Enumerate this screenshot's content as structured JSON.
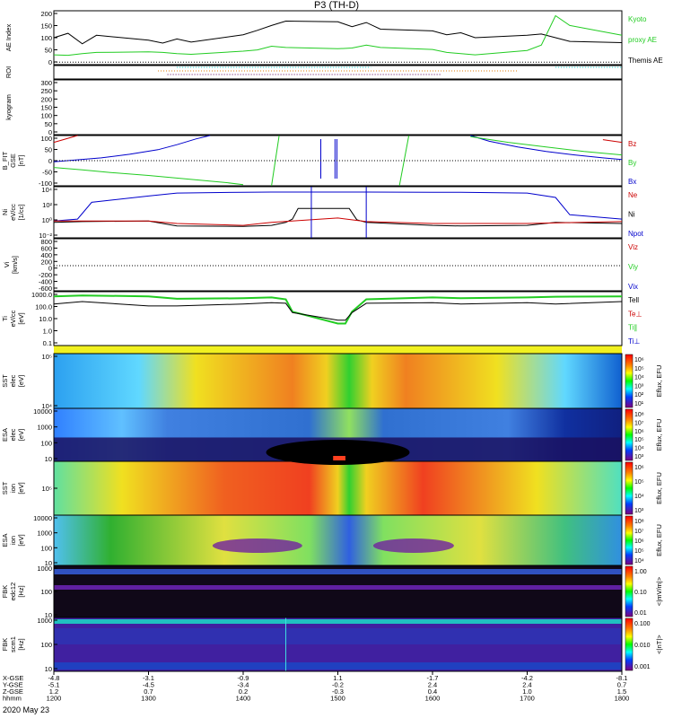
{
  "title": "P3 (TH-D)",
  "date_label": "2020 May 23",
  "colors": {
    "red": "#cc0000",
    "green": "#22cc22",
    "blue": "#0000cc",
    "black": "#000000",
    "cyan": "#00c8c8",
    "orange": "#dd7700"
  },
  "chart_data": {
    "type": "line",
    "x_axis": {
      "range": [
        1200,
        1800
      ],
      "hhmm_ticks": [
        "1200",
        "1300",
        "1400",
        "1500",
        "1600",
        "1700",
        "1800"
      ],
      "rows": [
        {
          "label": "X-GSE",
          "values": [
            "-4.8",
            "-3.1",
            "-0.9",
            "1.1",
            "-1.7",
            "-4.2",
            "-8.1"
          ]
        },
        {
          "label": "Y-GSE",
          "values": [
            "-5.1",
            "-4.5",
            "-3.4",
            "-0.2",
            "2.4",
            "2.4",
            "0.7"
          ]
        },
        {
          "label": "Z-GSE",
          "values": [
            "1.2",
            "0.7",
            "0.2",
            "-0.3",
            "0.4",
            "1.0",
            "1.5"
          ]
        },
        {
          "label": "hhmm",
          "values": [
            "1200",
            "1300",
            "1400",
            "1500",
            "1600",
            "1700",
            "1800"
          ]
        }
      ]
    },
    "panels": [
      {
        "id": "ae",
        "ylabel": [
          "AE Index"
        ],
        "yticks": [
          "200",
          "150",
          "100",
          "50",
          "0"
        ],
        "legend": [
          {
            "text": "Kyoto",
            "color": "#22cc22"
          },
          {
            "text": "proxy AE",
            "color": "#22cc22"
          },
          {
            "text": "Themis AE",
            "color": "#000000"
          }
        ]
      },
      {
        "id": "roi",
        "ylabel": [
          "ROI"
        ],
        "yticks": []
      },
      {
        "id": "kyogram",
        "ylabel": [
          "kyogram"
        ],
        "yticks": [
          "300",
          "250",
          "200",
          "150",
          "100",
          "50",
          "0"
        ]
      },
      {
        "id": "bfit",
        "ylabel": [
          "B_FIT",
          "GSE",
          "[nT]"
        ],
        "yticks": [
          "100",
          "50",
          "0",
          "-50",
          "-100"
        ],
        "legend": [
          {
            "text": "Bz",
            "color": "#cc0000"
          },
          {
            "text": "By",
            "color": "#22cc22"
          },
          {
            "text": "Bx",
            "color": "#0000cc"
          }
        ]
      },
      {
        "id": "ni",
        "ylabel": [
          "Ni",
          "eV/cc",
          "[1/cc]"
        ],
        "yticks": [
          "10⁴",
          "10²",
          "10⁰",
          "10⁻²"
        ],
        "legend": [
          {
            "text": "Ne",
            "color": "#cc0000"
          },
          {
            "text": "Ni",
            "color": "#000000"
          },
          {
            "text": "Npot",
            "color": "#0000cc"
          }
        ]
      },
      {
        "id": "vi",
        "ylabel": [
          "Vi",
          "[km/s]"
        ],
        "yticks": [
          "800",
          "600",
          "400",
          "200",
          "0",
          "-200",
          "-400",
          "-600"
        ],
        "legend": [
          {
            "text": "Viz",
            "color": "#cc0000"
          },
          {
            "text": "Viy",
            "color": "#22cc22"
          },
          {
            "text": "Vix",
            "color": "#0000cc"
          }
        ]
      },
      {
        "id": "ti",
        "ylabel": [
          "Ti",
          "eV/cc",
          "[eV]"
        ],
        "yticks": [
          "1000.0",
          "100.0",
          "10.0",
          "1.0",
          "0.1"
        ],
        "legend": [
          {
            "text": "Tell",
            "color": "#000000"
          },
          {
            "text": "Te⊥",
            "color": "#cc0000"
          },
          {
            "text": "Ti∥",
            "color": "#22cc22"
          },
          {
            "text": "Ti⊥",
            "color": "#0000cc"
          }
        ]
      },
      {
        "id": "sst1",
        "ylabel": [
          "SST",
          "elec",
          "[eV]"
        ],
        "yticks": [
          "10⁵",
          "10⁴"
        ]
      },
      {
        "id": "esa1",
        "ylabel": [
          "ESA",
          "elec",
          "[eV]"
        ],
        "yticks": [
          "10000",
          "1000",
          "100",
          "10"
        ]
      },
      {
        "id": "sst2",
        "ylabel": [
          "SST",
          "ion",
          "[eV]"
        ],
        "yticks": [
          "10⁵"
        ]
      },
      {
        "id": "esa2",
        "ylabel": [
          "ESA",
          "ion",
          "[eV]"
        ],
        "yticks": [
          "10000",
          "1000",
          "100",
          "10"
        ]
      },
      {
        "id": "fbk1",
        "ylabel": [
          "FBK",
          "edc12",
          "[Hz]"
        ],
        "yticks": [
          "1000",
          "100",
          "10"
        ]
      },
      {
        "id": "fbk2",
        "ylabel": [
          "FBK",
          "scm1",
          "[Hz]"
        ],
        "yticks": [
          "1000",
          "100",
          "10"
        ]
      }
    ],
    "colorbars": [
      {
        "panel": "sst1",
        "label": "Eflux, EFU",
        "ticks": [
          "10⁶",
          "10⁵",
          "10⁴",
          "10³",
          "10²",
          "10¹"
        ]
      },
      {
        "panel": "esa1",
        "label": "Eflux, EFU",
        "ticks": [
          "10⁸",
          "10⁷",
          "10⁶",
          "10⁵",
          "10⁴",
          "10³"
        ]
      },
      {
        "panel": "sst2",
        "label": "Eflux, EFU",
        "ticks": [
          "10⁶",
          "10⁵",
          "10⁴",
          "10³"
        ]
      },
      {
        "panel": "esa2",
        "label": "Eflux, EFU",
        "ticks": [
          "10⁸",
          "10⁷",
          "10⁶",
          "10⁵",
          "10⁴"
        ]
      },
      {
        "panel": "fbk1",
        "label": "<|mV/m|>",
        "ticks": [
          "1.00",
          "0.10",
          "0.01"
        ]
      },
      {
        "panel": "fbk2",
        "label": "<|nT|>",
        "ticks": [
          "0.100",
          "0.010",
          "0.001"
        ]
      }
    ],
    "series": {
      "ae_themis": {
        "x": [
          1200,
          1215,
          1230,
          1245,
          1300,
          1315,
          1330,
          1345,
          1400,
          1415,
          1430,
          1445,
          1500,
          1515,
          1530,
          1545,
          1600,
          1615,
          1630,
          1645,
          1700,
          1715,
          1730,
          1745,
          1800
        ],
        "y": [
          100,
          118,
          75,
          110,
          90,
          78,
          95,
          82,
          112,
          130,
          150,
          168,
          165,
          145,
          162,
          135,
          128,
          112,
          120,
          100,
          110,
          115,
          100,
          85,
          80
        ]
      },
      "ae_kyoto": {
        "x": [
          1200,
          1215,
          1230,
          1245,
          1300,
          1315,
          1330,
          1345,
          1400,
          1415,
          1430,
          1445,
          1500,
          1515,
          1530,
          1545,
          1600,
          1615,
          1630,
          1645,
          1700,
          1715,
          1730,
          1745,
          1800
        ],
        "y": [
          30,
          28,
          35,
          40,
          42,
          40,
          35,
          32,
          45,
          50,
          65,
          60,
          55,
          58,
          70,
          60,
          52,
          40,
          35,
          30,
          48,
          70,
          190,
          150,
          110
        ]
      },
      "ni_total": {
        "x": [
          1200,
          1230,
          1300,
          1330,
          1400,
          1430,
          1445,
          1452,
          1458,
          1505,
          1512,
          1520,
          1530,
          1600,
          1630,
          1700,
          1730,
          1800
        ],
        "y": [
          0.3,
          0.4,
          0.5,
          0.08,
          0.07,
          0.1,
          0.3,
          1,
          50,
          50,
          50,
          0.8,
          0.3,
          0.1,
          0.08,
          0.1,
          0.3,
          0.2
        ]
      },
      "ni_e": {
        "x": [
          1200,
          1300,
          1330,
          1400,
          1430,
          1500,
          1530,
          1600,
          1700,
          1800
        ],
        "y": [
          0.5,
          0.5,
          0.2,
          0.1,
          0.3,
          1.5,
          0.4,
          0.2,
          0.2,
          0.4
        ]
      },
      "npot": {
        "x": [
          1200,
          1225,
          1240,
          1300,
          1330,
          1400,
          1430,
          1500,
          1530,
          1600,
          1630,
          1700,
          1730,
          1745,
          1800
        ],
        "y": [
          0.5,
          1,
          500,
          5000,
          15000,
          20000,
          22000,
          22000,
          22000,
          20000,
          20000,
          15000,
          3000,
          5,
          1
        ]
      },
      "ti_par": {
        "x": [
          1200,
          1230,
          1300,
          1330,
          1400,
          1430,
          1445,
          1452,
          1500,
          1508,
          1515,
          1530,
          1600,
          1630,
          1700,
          1730,
          1800
        ],
        "y": [
          1500,
          1800,
          1500,
          900,
          1000,
          1200,
          800,
          60,
          5,
          5,
          60,
          800,
          1200,
          1000,
          1200,
          1400,
          1500
        ]
      },
      "t_ell": {
        "x": [
          1200,
          1230,
          1300,
          1330,
          1400,
          1430,
          1445,
          1452,
          1500,
          1508,
          1515,
          1530,
          1600,
          1630,
          1700,
          1730,
          1800
        ],
        "y": [
          300,
          500,
          200,
          200,
          300,
          400,
          350,
          50,
          10,
          10,
          50,
          350,
          400,
          300,
          400,
          300,
          500
        ]
      }
    }
  }
}
